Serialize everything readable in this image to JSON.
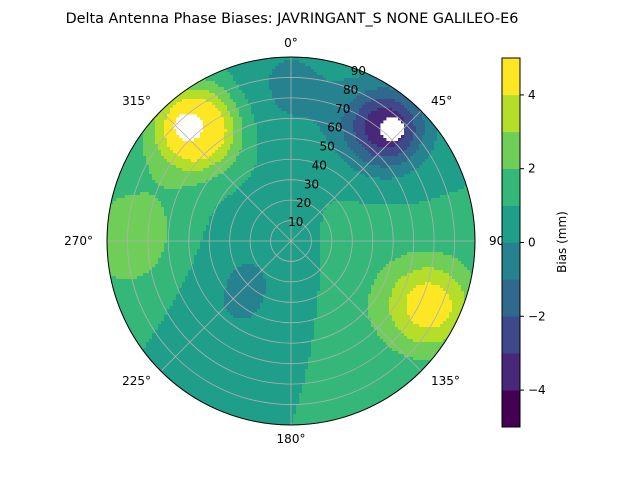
{
  "chart_data": {
    "type": "polar-contour",
    "title": "Delta Antenna Phase Biases: JAVRINGANT_S    NONE GALILEO-E6",
    "theta_direction": "clockwise",
    "theta_zero": "north",
    "theta_ticks": [
      {
        "value": 0,
        "label": "0°"
      },
      {
        "value": 45,
        "label": "45°"
      },
      {
        "value": 90,
        "label": "90°"
      },
      {
        "value": 135,
        "label": "135°"
      },
      {
        "value": 180,
        "label": "180°"
      },
      {
        "value": 225,
        "label": "225°"
      },
      {
        "value": 270,
        "label": "270°"
      },
      {
        "value": 315,
        "label": "315°"
      }
    ],
    "r_ticks": [
      10,
      20,
      30,
      40,
      50,
      60,
      70,
      80,
      90
    ],
    "rlim": [
      0,
      90
    ],
    "grid": true,
    "colorbar": {
      "label": "Bias (mm)",
      "vmin": -5,
      "vmax": 5,
      "levels": [
        -5,
        -4,
        -3,
        -2,
        -1,
        0,
        1,
        2,
        3,
        4,
        5
      ],
      "ticks": [
        -4,
        -2,
        0,
        2,
        4
      ],
      "tick_labels": [
        "−4",
        "−2",
        "0",
        "2",
        "4"
      ],
      "colors": [
        "#440154",
        "#482878",
        "#3e4989",
        "#31688e",
        "#26828e",
        "#1f9e89",
        "#35b779",
        "#6ece58",
        "#b5de2b",
        "#fde725"
      ]
    },
    "field": {
      "components": [
        {
          "az": 40,
          "el": 72,
          "amp": -5.0,
          "width": 14
        },
        {
          "az": 320,
          "el": 72,
          "amp": 5.5,
          "width": 14
        },
        {
          "az": 115,
          "el": 75,
          "amp": 3.6,
          "width": 16
        },
        {
          "az": 220,
          "el": 30,
          "amp": -1.6,
          "width": 28
        },
        {
          "az": 0,
          "el": 75,
          "amp": -1.2,
          "width": 22
        },
        {
          "az": 150,
          "el": 30,
          "amp": 0.8,
          "width": 30
        },
        {
          "az": 270,
          "el": 75,
          "amp": 1.6,
          "width": 24
        }
      ],
      "offset": 1.0,
      "masked_regions": [
        {
          "az": 42,
          "el": 74,
          "radius": 6
        },
        {
          "az": 318,
          "el": 75,
          "radius": 7
        }
      ]
    }
  }
}
